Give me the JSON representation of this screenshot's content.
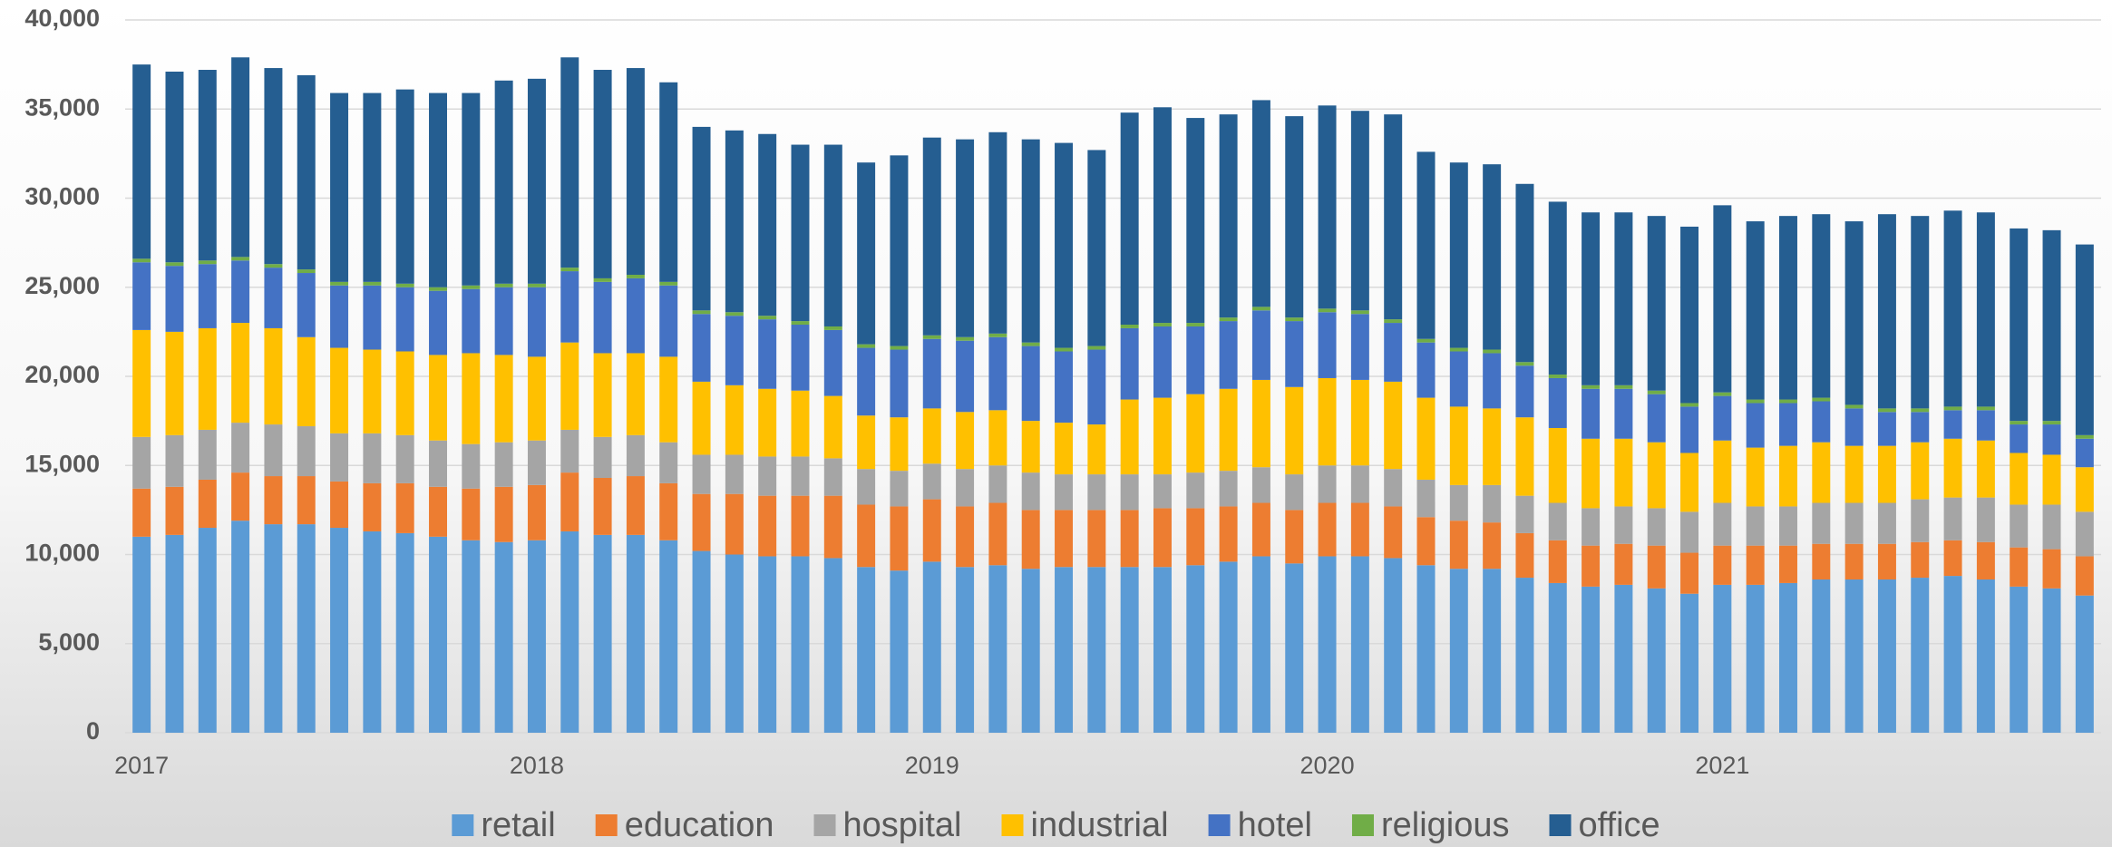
{
  "chart_data": {
    "type": "stacked_bar",
    "categories": [
      "2017",
      null,
      null,
      null,
      null,
      null,
      null,
      null,
      null,
      null,
      null,
      null,
      "2018",
      null,
      null,
      null,
      null,
      null,
      null,
      null,
      null,
      null,
      null,
      null,
      "2019",
      null,
      null,
      null,
      null,
      null,
      null,
      null,
      null,
      null,
      null,
      null,
      "2020",
      null,
      null,
      null,
      null,
      null,
      null,
      null,
      null,
      null,
      null,
      null,
      "2021",
      null,
      null,
      null,
      null,
      null,
      null,
      null,
      null,
      null,
      null,
      null
    ],
    "series": [
      {
        "name": "retail",
        "color": "#5b9bd5",
        "values": [
          11000,
          11100,
          11500,
          11900,
          11700,
          11700,
          11500,
          11300,
          11200,
          11000,
          10800,
          10700,
          10800,
          11300,
          11100,
          11100,
          10800,
          10200,
          10000,
          9900,
          9900,
          9800,
          9300,
          9100,
          9600,
          9300,
          9400,
          9200,
          9300,
          9300,
          9300,
          9300,
          9400,
          9600,
          9900,
          9500,
          9900,
          9900,
          9800,
          9400,
          9200,
          9200,
          8700,
          8400,
          8200,
          8300,
          8100,
          7800,
          8300,
          8300,
          8400,
          8600,
          8600,
          8600,
          8700,
          8800,
          8600,
          8200,
          8100,
          7700
        ]
      },
      {
        "name": "education",
        "color": "#ed7d31",
        "values": [
          2700,
          2700,
          2700,
          2700,
          2700,
          2700,
          2600,
          2700,
          2800,
          2800,
          2900,
          3100,
          3100,
          3300,
          3200,
          3300,
          3200,
          3200,
          3400,
          3400,
          3400,
          3500,
          3500,
          3600,
          3500,
          3400,
          3500,
          3300,
          3200,
          3200,
          3200,
          3300,
          3200,
          3100,
          3000,
          3000,
          3000,
          3000,
          2900,
          2700,
          2700,
          2600,
          2500,
          2400,
          2300,
          2300,
          2400,
          2300,
          2200,
          2200,
          2100,
          2000,
          2000,
          2000,
          2000,
          2000,
          2100,
          2200,
          2200,
          2200
        ]
      },
      {
        "name": "hospital",
        "color": "#a5a5a5",
        "values": [
          2900,
          2900,
          2800,
          2800,
          2900,
          2800,
          2700,
          2800,
          2700,
          2600,
          2500,
          2500,
          2500,
          2400,
          2300,
          2300,
          2300,
          2200,
          2200,
          2200,
          2200,
          2100,
          2000,
          2000,
          2000,
          2100,
          2100,
          2100,
          2000,
          2000,
          2000,
          1900,
          2000,
          2000,
          2000,
          2000,
          2100,
          2100,
          2100,
          2100,
          2000,
          2100,
          2100,
          2100,
          2100,
          2100,
          2100,
          2300,
          2400,
          2200,
          2200,
          2300,
          2300,
          2300,
          2400,
          2400,
          2500,
          2400,
          2500,
          2500
        ]
      },
      {
        "name": "industrial",
        "color": "#ffc000",
        "values": [
          6000,
          5800,
          5700,
          5600,
          5400,
          5000,
          4800,
          4700,
          4700,
          4800,
          5100,
          4900,
          4700,
          4900,
          4700,
          4600,
          4800,
          4100,
          3900,
          3800,
          3700,
          3500,
          3000,
          3000,
          3100,
          3200,
          3100,
          2900,
          2900,
          2800,
          4200,
          4300,
          4400,
          4600,
          4900,
          4900,
          4900,
          4800,
          4900,
          4600,
          4400,
          4300,
          4400,
          4200,
          3900,
          3800,
          3700,
          3300,
          3500,
          3300,
          3400,
          3400,
          3200,
          3200,
          3200,
          3300,
          3200,
          2900,
          2800,
          2500
        ]
      },
      {
        "name": "hotel",
        "color": "#4472c4",
        "values": [
          3800,
          3700,
          3600,
          3500,
          3400,
          3600,
          3500,
          3600,
          3600,
          3600,
          3600,
          3800,
          3900,
          4000,
          4000,
          4200,
          4000,
          3800,
          3900,
          3900,
          3700,
          3700,
          3800,
          3800,
          3900,
          4000,
          4100,
          4200,
          4000,
          4200,
          4000,
          4000,
          3800,
          3800,
          3900,
          3700,
          3700,
          3700,
          3300,
          3100,
          3100,
          3100,
          2900,
          2800,
          2800,
          2800,
          2700,
          2600,
          2500,
          2500,
          2400,
          2300,
          2100,
          1900,
          1700,
          1600,
          1700,
          1600,
          1700,
          1600
        ]
      },
      {
        "name": "religious",
        "color": "#70ad47",
        "values": [
          200,
          200,
          200,
          200,
          200,
          200,
          200,
          200,
          200,
          200,
          200,
          200,
          200,
          200,
          200,
          200,
          200,
          200,
          200,
          200,
          200,
          200,
          200,
          200,
          200,
          200,
          200,
          200,
          200,
          200,
          200,
          200,
          200,
          200,
          200,
          200,
          200,
          200,
          200,
          200,
          200,
          200,
          200,
          200,
          200,
          200,
          200,
          200,
          200,
          200,
          200,
          200,
          200,
          200,
          200,
          200,
          200,
          200,
          200,
          200
        ]
      },
      {
        "name": "office",
        "color": "#255e91",
        "values": [
          10900,
          10700,
          10700,
          11200,
          11000,
          10900,
          10600,
          10600,
          10900,
          10900,
          10800,
          11400,
          11500,
          11800,
          11700,
          11600,
          11200,
          10300,
          10200,
          10200,
          9900,
          10200,
          10200,
          10700,
          11100,
          11100,
          11300,
          11400,
          11500,
          11000,
          11900,
          12100,
          11500,
          11400,
          11600,
          11300,
          11400,
          11200,
          11500,
          10500,
          10400,
          10400,
          10000,
          9700,
          9700,
          9700,
          9800,
          9900,
          10500,
          10000,
          10300,
          10300,
          10300,
          10900,
          10800,
          11000,
          10900,
          10800,
          10700,
          10700
        ]
      }
    ],
    "ylim": [
      0,
      40000
    ],
    "yticks": [
      0,
      {
        "value": 5000,
        "label": "5,000"
      },
      {
        "value": 10000,
        "label": "10,000"
      },
      {
        "value": 15000,
        "label": "15,000"
      },
      {
        "value": 20000,
        "label": "20,000"
      },
      {
        "value": 25000,
        "label": "25,000"
      },
      {
        "value": 30000,
        "label": "30,000"
      },
      {
        "value": 35000,
        "label": "35,000"
      },
      {
        "value": 40000,
        "label": "40,000"
      }
    ],
    "grid": true,
    "legend": "bottom"
  }
}
